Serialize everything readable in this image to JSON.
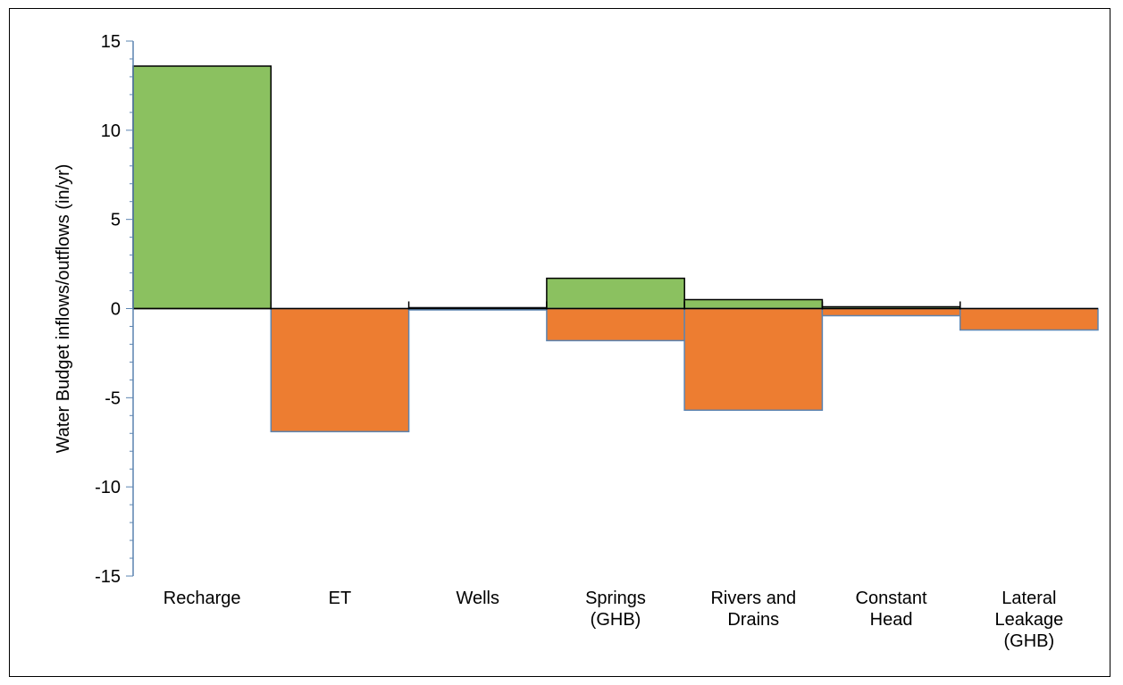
{
  "chart_data": {
    "type": "bar",
    "title": "",
    "xlabel": "",
    "ylabel": "Water Budget inflows/outflows (in/yr)",
    "ylim": [
      -15,
      15
    ],
    "yticks": [
      15,
      10,
      5,
      0,
      -5,
      -10,
      -15
    ],
    "grid": false,
    "legend": "none",
    "categories": [
      [
        "Recharge"
      ],
      [
        "ET"
      ],
      [
        "Wells"
      ],
      [
        "Springs",
        "(GHB)"
      ],
      [
        "Rivers and",
        "Drains"
      ],
      [
        "Constant",
        "Head"
      ],
      [
        "Lateral",
        "Leakage",
        "(GHB)"
      ]
    ],
    "series": [
      {
        "values": [
          13.6,
          0,
          0.05,
          1.7,
          0.5,
          0.1,
          0
        ],
        "color": "#8bc160"
      },
      {
        "values": [
          0,
          -6.9,
          -0.05,
          -1.8,
          -5.7,
          -0.4,
          -1.2
        ],
        "color": "#ed7d31"
      }
    ],
    "axis_color": "#5b84b1"
  }
}
